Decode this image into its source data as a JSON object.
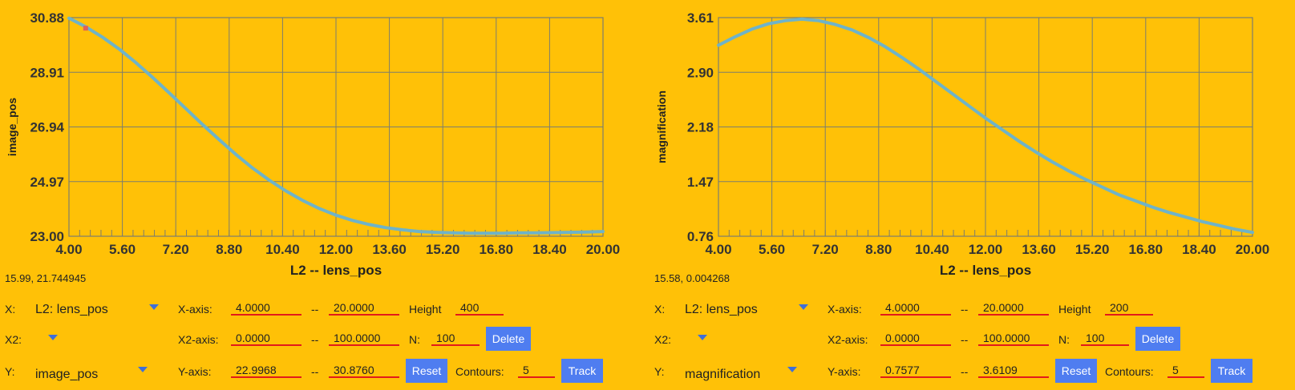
{
  "panels": [
    {
      "chart_data": {
        "type": "line",
        "xlabel": "L2 -- lens_pos",
        "ylabel": "image_pos",
        "xlim": [
          4.0,
          20.0
        ],
        "ylim": [
          23.0,
          30.88
        ],
        "xticks": [
          "4.00",
          "5.60",
          "7.20",
          "8.80",
          "10.40",
          "12.00",
          "13.60",
          "15.20",
          "16.80",
          "18.40",
          "20.00"
        ],
        "yticks": [
          "23.00",
          "24.97",
          "26.94",
          "28.91",
          "30.88"
        ],
        "grid": true,
        "line_color": "#6fb3c8",
        "marker_color": "#e0605a",
        "marker": {
          "x": 4.5,
          "y": 30.5
        },
        "series": [
          {
            "x": [
              4.0,
              4.5,
              5.0,
              5.5,
              6.0,
              6.5,
              7.0,
              7.5,
              8.0,
              8.5,
              9.0,
              9.5,
              10.0,
              10.5,
              11.0,
              11.5,
              12.0,
              12.5,
              13.0,
              13.5,
              14.0,
              14.5,
              15.0,
              15.5,
              16.0,
              16.5,
              17.0,
              17.5,
              18.0,
              18.5,
              19.0,
              19.5,
              20.0
            ],
            "y": [
              30.86,
              30.55,
              30.18,
              29.75,
              29.26,
              28.73,
              28.17,
              27.6,
              27.03,
              26.48,
              25.95,
              25.46,
              25.02,
              24.63,
              24.29,
              24.0,
              23.76,
              23.57,
              23.42,
              23.31,
              23.23,
              23.17,
              23.14,
              23.12,
              23.11,
              23.11,
              23.11,
              23.12,
              23.12,
              23.13,
              23.14,
              23.15,
              23.17
            ]
          }
        ]
      },
      "coords": "15.99, 21.744945",
      "controls": {
        "x_label": "X:",
        "x_select": "L2: lens_pos",
        "x2_label": "X2:",
        "x2_select": "",
        "y_label": "Y:",
        "y_select": "image_pos",
        "xaxis_label": "X-axis:",
        "xaxis_min": "4.0000",
        "xaxis_max": "20.0000",
        "x2axis_label": "X2-axis:",
        "x2axis_min": "0.0000",
        "x2axis_max": "100.0000",
        "yaxis_label": "Y-axis:",
        "yaxis_min": "22.9968",
        "yaxis_max": "30.8760",
        "dash": "--",
        "height_label": "Height",
        "height_value": "400",
        "n_label": "N:",
        "n_value": "100",
        "contours_label": "Contours:",
        "contours_value": "5",
        "delete_label": "Delete",
        "reset_label": "Reset",
        "track_label": "Track"
      }
    },
    {
      "chart_data": {
        "type": "line",
        "xlabel": "L2 -- lens_pos",
        "ylabel": "magnification",
        "xlim": [
          4.0,
          20.0
        ],
        "ylim": [
          0.76,
          3.61
        ],
        "xticks": [
          "4.00",
          "5.60",
          "7.20",
          "8.80",
          "10.40",
          "12.00",
          "13.60",
          "15.20",
          "16.80",
          "18.40",
          "20.00"
        ],
        "yticks": [
          "0.76",
          "1.47",
          "2.18",
          "2.90",
          "3.61"
        ],
        "grid": true,
        "line_color": "#6fb3c8",
        "series": [
          {
            "x": [
              4.0,
              4.5,
              5.0,
              5.5,
              6.0,
              6.5,
              7.0,
              7.5,
              8.0,
              8.5,
              9.0,
              9.5,
              10.0,
              10.5,
              11.0,
              11.5,
              12.0,
              12.5,
              13.0,
              13.5,
              14.0,
              14.5,
              15.0,
              15.5,
              16.0,
              16.5,
              17.0,
              17.5,
              18.0,
              18.5,
              19.0,
              19.5,
              20.0
            ],
            "y": [
              3.25,
              3.36,
              3.46,
              3.53,
              3.57,
              3.59,
              3.57,
              3.52,
              3.45,
              3.35,
              3.23,
              3.09,
              2.94,
              2.78,
              2.62,
              2.46,
              2.3,
              2.15,
              2.0,
              1.86,
              1.73,
              1.61,
              1.5,
              1.4,
              1.3,
              1.22,
              1.14,
              1.07,
              1.01,
              0.95,
              0.9,
              0.85,
              0.81
            ]
          }
        ]
      },
      "coords": "15.58, 0.004268",
      "controls": {
        "x_label": "X:",
        "x_select": "L2: lens_pos",
        "x2_label": "X2:",
        "x2_select": "",
        "y_label": "Y:",
        "y_select": "magnification",
        "xaxis_label": "X-axis:",
        "xaxis_min": "4.0000",
        "xaxis_max": "20.0000",
        "x2axis_label": "X2-axis:",
        "x2axis_min": "0.0000",
        "x2axis_max": "100.0000",
        "yaxis_label": "Y-axis:",
        "yaxis_min": "0.7577",
        "yaxis_max": "3.6109",
        "dash": "--",
        "height_label": "Height",
        "height_value": "200",
        "n_label": "N:",
        "n_value": "100",
        "contours_label": "Contours:",
        "contours_value": "5",
        "delete_label": "Delete",
        "reset_label": "Reset",
        "track_label": "Track"
      }
    }
  ]
}
